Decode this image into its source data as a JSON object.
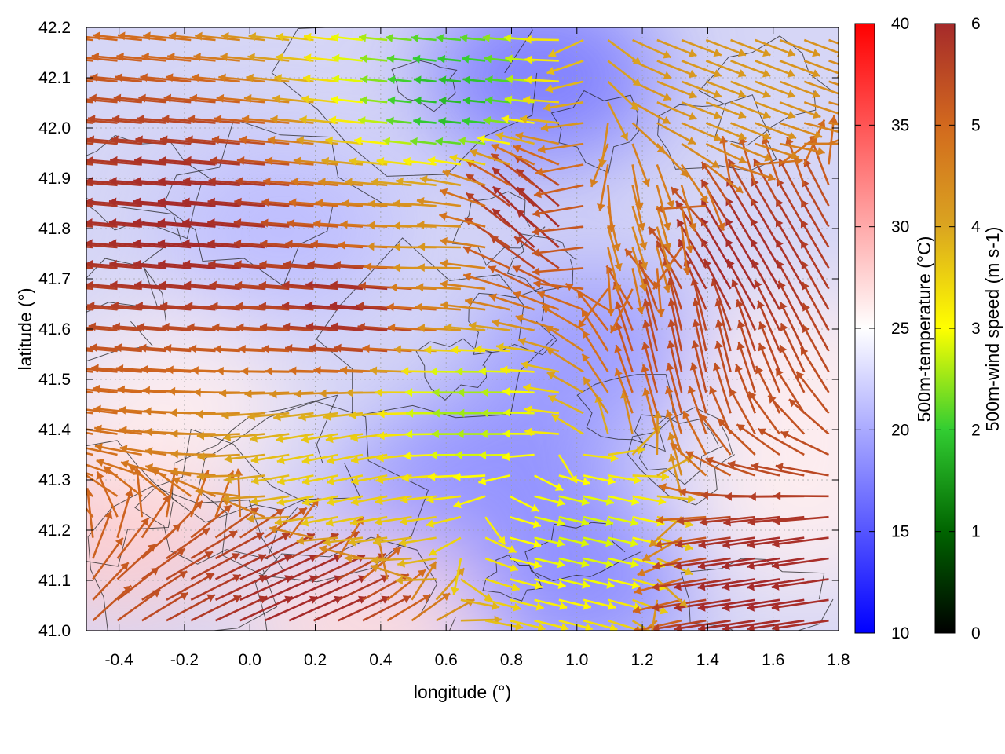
{
  "chart_data": {
    "type": "vector-field",
    "title": "",
    "xlabel": "longitude (°)",
    "ylabel": "latitude (°)",
    "xlim": [
      -0.5,
      1.8
    ],
    "ylim": [
      41.0,
      42.2
    ],
    "x_ticks": [
      "-0.4",
      "-0.2",
      "0.0",
      "0.2",
      "0.4",
      "0.6",
      "0.8",
      "1.0",
      "1.2",
      "1.4",
      "1.6",
      "1.8"
    ],
    "y_ticks": [
      "41.0",
      "41.1",
      "41.2",
      "41.3",
      "41.4",
      "41.5",
      "41.6",
      "41.7",
      "41.8",
      "41.9",
      "42.0",
      "42.1",
      "42.2"
    ],
    "grid": true,
    "background_field": {
      "name": "500m-temperature",
      "colorbar_label": "500m-temperature (°C)",
      "range": [
        10,
        40
      ],
      "ticks": [
        "10",
        "15",
        "20",
        "25",
        "30",
        "35",
        "40"
      ],
      "colors": {
        "low": "#0000ff",
        "mid": "#ffffff",
        "high": "#ff0000"
      },
      "regions": [
        {
          "lon": 0.9,
          "lat": 42.1,
          "value": 17
        },
        {
          "lon": 0.72,
          "lat": 41.3,
          "value": 18
        },
        {
          "lon": 1.0,
          "lat": 41.1,
          "value": 18
        },
        {
          "lon": 1.05,
          "lat": 41.55,
          "value": 19
        },
        {
          "lon": 0.1,
          "lat": 41.8,
          "value": 21
        },
        {
          "lon": 0.55,
          "lat": 41.2,
          "value": 19
        },
        {
          "lon": -0.4,
          "lat": 41.2,
          "value": 28
        },
        {
          "lon": -0.25,
          "lat": 41.45,
          "value": 26
        },
        {
          "lon": 1.7,
          "lat": 41.5,
          "value": 26
        },
        {
          "lon": 1.7,
          "lat": 41.25,
          "value": 26
        },
        {
          "lon": 0.35,
          "lat": 41.02,
          "value": 27
        }
      ]
    },
    "vector_field": {
      "name": "500m-wind speed",
      "colorbar_label": "500m-wind speed (m s-1)",
      "range": [
        0,
        6
      ],
      "ticks": [
        "0",
        "1",
        "2",
        "3",
        "4",
        "5",
        "6"
      ],
      "colors": [
        "#000000",
        "#006400",
        "#32cd32",
        "#ffff00",
        "#daa520",
        "#d2691e",
        "#a52a2a"
      ],
      "regions": [
        {
          "lon": -0.1,
          "lat": 41.8,
          "u": -1.0,
          "v": 0.08,
          "speed": 6.0
        },
        {
          "lon": 0.4,
          "lat": 41.65,
          "u": -1.0,
          "v": 0.08,
          "speed": 6.0
        },
        {
          "lon": 0.9,
          "lat": 41.8,
          "u": -0.7,
          "v": 0.7,
          "speed": 6.0
        },
        {
          "lon": 1.5,
          "lat": 41.7,
          "u": -0.5,
          "v": 0.85,
          "speed": 6.0
        },
        {
          "lon": 1.6,
          "lat": 41.1,
          "u": -1.0,
          "v": -0.15,
          "speed": 6.0
        },
        {
          "lon": 0.1,
          "lat": 41.05,
          "u": 0.9,
          "v": 0.4,
          "speed": 6.0
        },
        {
          "lon": 0.7,
          "lat": 41.45,
          "u": -1.0,
          "v": 0.0,
          "speed": 2.5
        },
        {
          "lon": 1.0,
          "lat": 41.2,
          "u": 0.9,
          "v": -0.2,
          "speed": 2.8
        },
        {
          "lon": 0.65,
          "lat": 42.05,
          "u": -1.0,
          "v": 0.1,
          "speed": 1.8
        },
        {
          "lon": 1.4,
          "lat": 42.1,
          "u": 0.8,
          "v": -0.3,
          "speed": 4.2
        },
        {
          "lon": 0.3,
          "lat": 41.3,
          "u": -1.0,
          "v": -0.2,
          "speed": 3.5
        },
        {
          "lon": 1.15,
          "lat": 41.8,
          "u": 0.3,
          "v": -0.95,
          "speed": 4.5
        },
        {
          "lon": 0.6,
          "lat": 41.75,
          "u": -1.0,
          "v": 0.0,
          "speed": 4.2
        },
        {
          "lon": 1.35,
          "lat": 41.55,
          "u": -0.2,
          "v": 0.98,
          "speed": 5.5
        }
      ]
    },
    "contours": {
      "color": "#222222",
      "description": "terrain elevation"
    }
  }
}
